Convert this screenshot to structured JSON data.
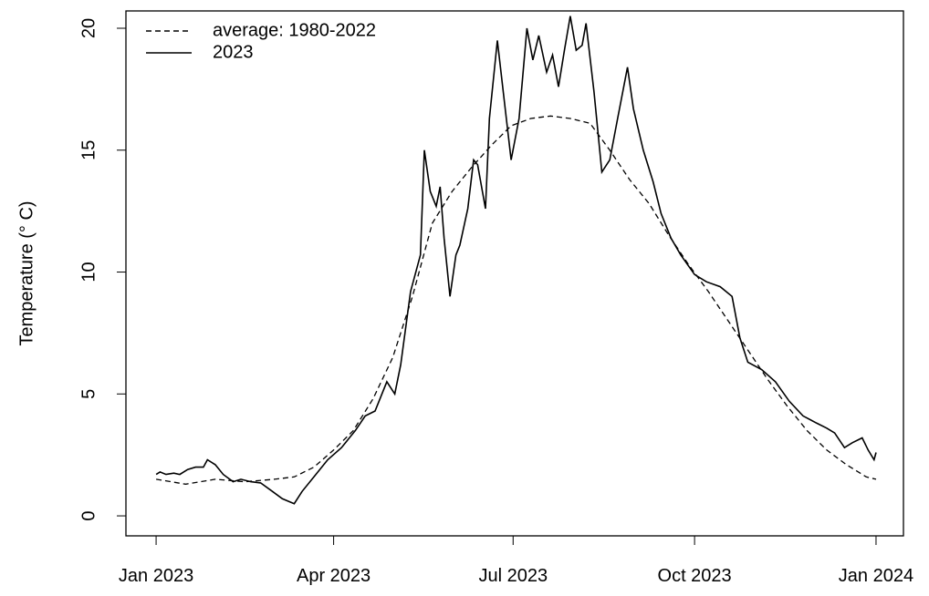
{
  "chart_data": {
    "type": "line",
    "ylabel": "Temperature (° C)",
    "xlim": [
      -15.3,
      378.9
    ],
    "ylim": [
      -0.82,
      20.71
    ],
    "xticks": [
      {
        "value": 0,
        "label": "Jan 2023"
      },
      {
        "value": 90,
        "label": "Apr 2023"
      },
      {
        "value": 181,
        "label": "Jul 2023"
      },
      {
        "value": 273,
        "label": "Oct 2023"
      },
      {
        "value": 365,
        "label": "Jan 2024"
      }
    ],
    "yticks": [
      0,
      5,
      10,
      15,
      20
    ],
    "legend": "top-left",
    "series": [
      {
        "name": "average: 1980-2022",
        "color": "#000000",
        "dash": true,
        "x": [
          0,
          15,
          30,
          45,
          60,
          70,
          80,
          90,
          100,
          110,
          120,
          130,
          140,
          150,
          160,
          170,
          180,
          190,
          200,
          210,
          220,
          230,
          240,
          250,
          260,
          270,
          280,
          290,
          300,
          310,
          320,
          330,
          340,
          350,
          360,
          365
        ],
        "values": [
          1.5,
          1.3,
          1.5,
          1.4,
          1.5,
          1.6,
          2.0,
          2.7,
          3.5,
          4.8,
          6.5,
          9.0,
          12.0,
          13.3,
          14.3,
          15.2,
          16.0,
          16.3,
          16.4,
          16.3,
          16.1,
          15.0,
          13.8,
          12.8,
          11.5,
          10.3,
          9.2,
          8.0,
          6.8,
          5.6,
          4.5,
          3.5,
          2.7,
          2.1,
          1.6,
          1.5
        ]
      },
      {
        "name": "2023",
        "color": "#000000",
        "dash": false,
        "x": [
          0,
          2,
          5,
          9,
          12,
          16,
          20,
          24,
          26,
          30,
          34,
          39,
          43,
          48,
          53,
          59,
          64,
          70,
          74,
          80,
          87,
          94,
          101,
          106,
          111,
          117,
          121,
          124,
          129,
          134,
          136,
          139,
          142,
          144,
          146,
          149,
          152,
          154,
          158,
          161,
          163,
          167,
          169,
          173,
          177,
          180,
          184,
          188,
          191,
          194,
          198,
          201,
          204,
          207,
          210,
          213,
          216,
          218,
          222,
          226,
          230,
          234,
          239,
          242,
          247,
          252,
          256,
          261,
          266,
          273,
          279,
          286,
          292,
          296,
          300,
          307,
          314,
          321,
          328,
          335,
          340,
          344,
          349,
          353,
          358,
          361,
          364,
          365
        ],
        "values": [
          1.7,
          1.8,
          1.7,
          1.75,
          1.7,
          1.9,
          2.0,
          2.0,
          2.3,
          2.1,
          1.7,
          1.4,
          1.5,
          1.4,
          1.35,
          1.0,
          0.7,
          0.5,
          1.0,
          1.6,
          2.3,
          2.8,
          3.5,
          4.1,
          4.3,
          5.5,
          5.0,
          6.2,
          9.2,
          10.7,
          15.0,
          13.3,
          12.7,
          13.5,
          11.4,
          9.0,
          10.7,
          11.1,
          12.6,
          14.6,
          14.4,
          12.6,
          16.3,
          19.5,
          16.7,
          14.6,
          16.3,
          20.0,
          18.7,
          19.7,
          18.2,
          18.9,
          17.6,
          19.1,
          20.5,
          19.1,
          19.3,
          20.2,
          17.4,
          14.1,
          14.6,
          16.3,
          18.4,
          16.7,
          15.0,
          13.7,
          12.4,
          11.4,
          10.7,
          9.9,
          9.6,
          9.4,
          9.0,
          7.3,
          6.3,
          6.0,
          5.5,
          4.7,
          4.1,
          3.8,
          3.6,
          3.4,
          2.8,
          3.0,
          3.2,
          2.7,
          2.3,
          2.6
        ]
      }
    ]
  }
}
